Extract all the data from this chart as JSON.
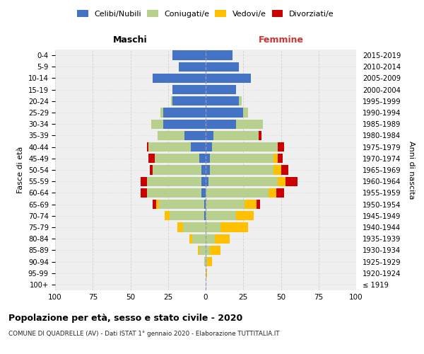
{
  "age_groups": [
    "100+",
    "95-99",
    "90-94",
    "85-89",
    "80-84",
    "75-79",
    "70-74",
    "65-69",
    "60-64",
    "55-59",
    "50-54",
    "45-49",
    "40-44",
    "35-39",
    "30-34",
    "25-29",
    "20-24",
    "15-19",
    "10-14",
    "5-9",
    "0-4"
  ],
  "birth_years": [
    "≤ 1919",
    "1920-1924",
    "1925-1929",
    "1930-1934",
    "1935-1939",
    "1940-1944",
    "1945-1949",
    "1950-1954",
    "1955-1959",
    "1960-1964",
    "1965-1969",
    "1970-1974",
    "1975-1979",
    "1980-1984",
    "1985-1989",
    "1990-1994",
    "1995-1999",
    "2000-2004",
    "2005-2009",
    "2010-2014",
    "2015-2019"
  ],
  "males_celibi": [
    0,
    0,
    0,
    0,
    0,
    0,
    1,
    1,
    3,
    3,
    3,
    4,
    10,
    14,
    28,
    28,
    22,
    22,
    35,
    18,
    22
  ],
  "males_coniugati": [
    0,
    0,
    1,
    4,
    9,
    15,
    23,
    30,
    36,
    36,
    32,
    30,
    28,
    18,
    8,
    2,
    1,
    0,
    0,
    0,
    0
  ],
  "males_vedovi": [
    0,
    0,
    0,
    1,
    2,
    4,
    3,
    2,
    0,
    0,
    0,
    0,
    0,
    0,
    0,
    0,
    0,
    0,
    0,
    0,
    0
  ],
  "males_divorziati": [
    0,
    0,
    0,
    0,
    0,
    0,
    0,
    2,
    4,
    4,
    2,
    4,
    1,
    0,
    0,
    0,
    0,
    0,
    0,
    0,
    0
  ],
  "females_nubili": [
    0,
    0,
    0,
    0,
    0,
    0,
    0,
    0,
    0,
    2,
    3,
    3,
    4,
    5,
    20,
    25,
    22,
    20,
    30,
    22,
    18
  ],
  "females_coniugate": [
    0,
    0,
    1,
    3,
    6,
    10,
    20,
    26,
    42,
    46,
    42,
    42,
    44,
    30,
    18,
    3,
    2,
    0,
    0,
    0,
    0
  ],
  "females_vedove": [
    0,
    1,
    3,
    7,
    10,
    18,
    12,
    8,
    5,
    5,
    5,
    3,
    0,
    0,
    0,
    0,
    0,
    0,
    0,
    0,
    0
  ],
  "females_divorziate": [
    0,
    0,
    0,
    0,
    0,
    0,
    0,
    2,
    5,
    8,
    5,
    3,
    4,
    2,
    0,
    0,
    0,
    0,
    0,
    0,
    0
  ],
  "color_celibi": "#4472c4",
  "color_coniugati": "#b8d08d",
  "color_vedovi": "#ffc000",
  "color_divorziati": "#cc0000",
  "title": "Popolazione per età, sesso e stato civile - 2020",
  "subtitle": "COMUNE DI QUADRELLE (AV) - Dati ISTAT 1° gennaio 2020 - Elaborazione TUTTITALIA.IT",
  "label_maschi": "Maschi",
  "label_femmine": "Femmine",
  "ylabel_left": "Fasce di età",
  "ylabel_right": "Anni di nascita",
  "xlim": 100,
  "bg_color": "#efefef",
  "grid_color": "#cccccc"
}
